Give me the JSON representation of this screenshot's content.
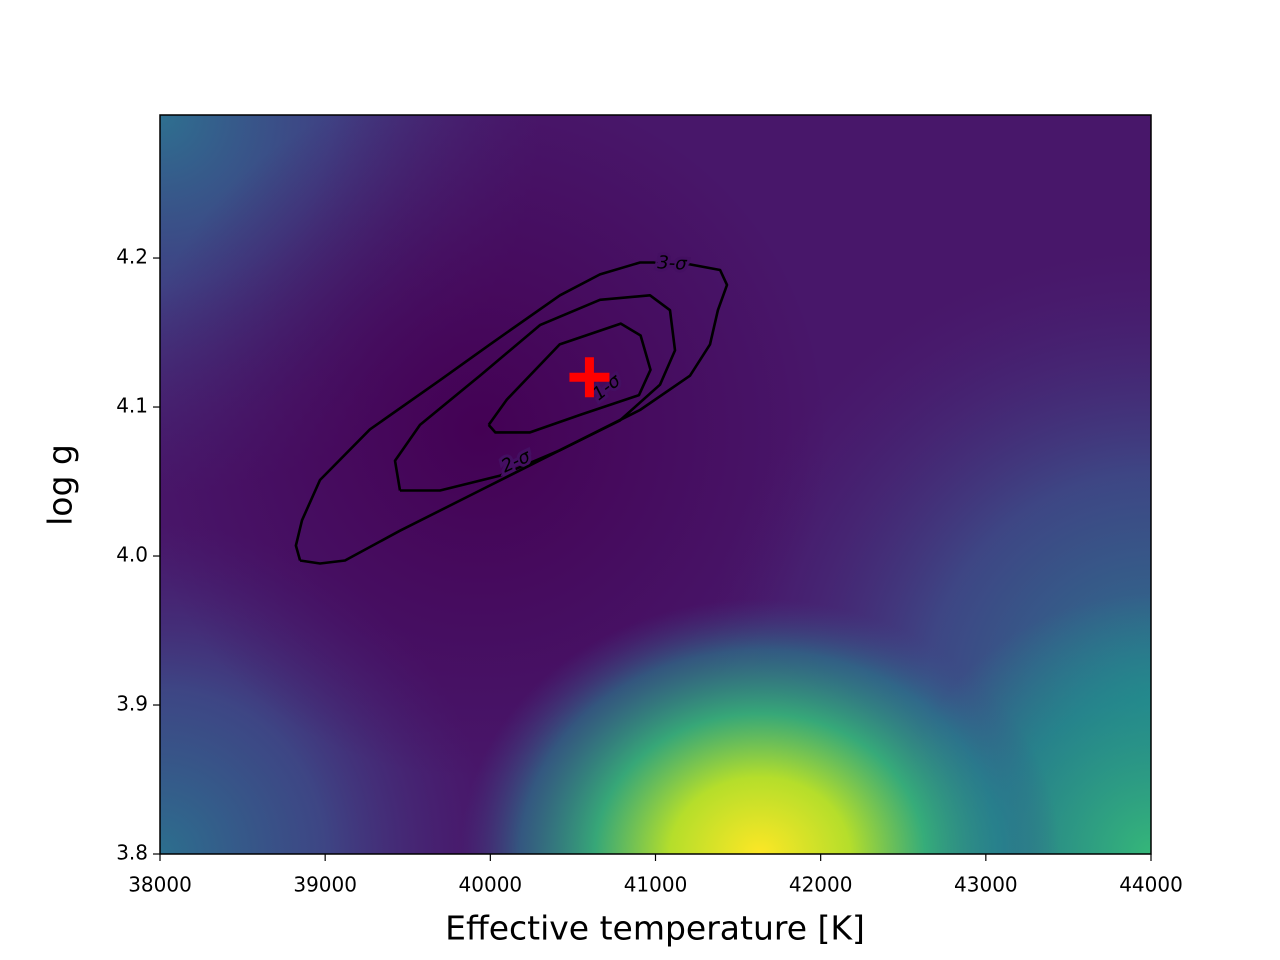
{
  "chart_data": {
    "type": "contour",
    "xlabel": "Effective temperature [K]",
    "ylabel": "log g",
    "xlim": [
      38000,
      44000
    ],
    "ylim": [
      3.8,
      4.296
    ],
    "xticks": [
      38000,
      39000,
      40000,
      41000,
      42000,
      43000,
      44000
    ],
    "yticks": [
      3.8,
      3.9,
      {
        "value": 4,
        "label": "4.0"
      },
      4.1,
      4.2
    ],
    "colormap": "viridis",
    "series": [
      {
        "name": "1-σ",
        "color": "#000000",
        "x": [
          39990,
          40100,
          40420,
          40790,
          40910,
          40970,
          40900,
          40550,
          40240,
          40030,
          39990
        ],
        "y": [
          4.088,
          4.105,
          4.142,
          4.156,
          4.148,
          4.125,
          4.108,
          4.095,
          4.083,
          4.083,
          4.088
        ]
      },
      {
        "name": "2-σ",
        "color": "#000000",
        "x": [
          39453,
          39423,
          39574,
          39937,
          40301,
          40664,
          40967,
          41088,
          41118,
          41027,
          40785,
          40422,
          40059,
          39695,
          39453
        ],
        "y": [
          4.044,
          4.064,
          4.088,
          4.121,
          4.155,
          4.172,
          4.175,
          4.165,
          4.138,
          4.115,
          4.091,
          4.071,
          4.054,
          4.044,
          4.044
        ]
      },
      {
        "name": "3-σ",
        "color": "#000000",
        "x": [
          38848,
          38823,
          38860,
          38969,
          39271,
          39695,
          39998,
          40422,
          40664,
          40906,
          41148,
          41391,
          41433,
          41378,
          41330,
          41209,
          40906,
          40422,
          39937,
          39453,
          39120,
          38969,
          38848
        ],
        "y": [
          3.997,
          4.007,
          4.024,
          4.051,
          4.085,
          4.118,
          4.142,
          4.175,
          4.189,
          4.197,
          4.197,
          4.192,
          4.182,
          4.165,
          4.142,
          4.121,
          4.098,
          4.071,
          4.044,
          4.017,
          3.997,
          3.995,
          3.997
        ]
      }
    ],
    "best_fit": {
      "x": 40600,
      "y": 4.12,
      "color": "#ff0000"
    }
  }
}
